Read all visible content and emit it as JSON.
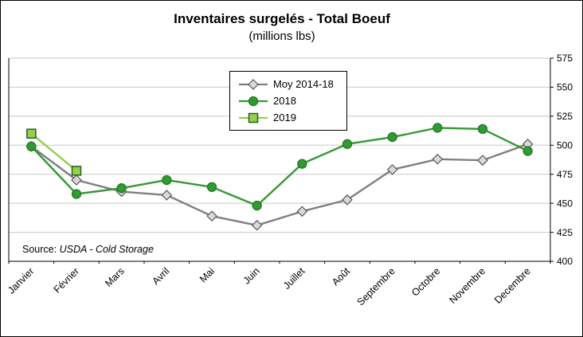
{
  "chart_data": {
    "type": "line",
    "title": "Inventaires surgelés - Total Boeuf",
    "subtitle": "(millions lbs)",
    "categories": [
      "Janvier",
      "Février",
      "Mars",
      "Avril",
      "Mai",
      "Juin",
      "Juillet",
      "Août",
      "Septembre",
      "Octobre",
      "Novembre",
      "Decembre"
    ],
    "ylim": [
      400,
      575
    ],
    "ytick_step": 25,
    "yaxis_side": "right",
    "grid": true,
    "legend_position": "top-center",
    "source_prefix": "Source:",
    "source_text": "USDA - Cold Storage",
    "colors": {
      "gridline": "#c8c8c8",
      "axis": "#000000"
    },
    "series": [
      {
        "name": "Moy 2014-18",
        "marker": "diamond",
        "color": "#808080",
        "marker_fill": "#d9d9d9",
        "marker_stroke": "#595959",
        "values": [
          499,
          470,
          460,
          457,
          439,
          431,
          443,
          453,
          479,
          488,
          487,
          501
        ]
      },
      {
        "name": "2018",
        "marker": "circle",
        "color": "#339933",
        "marker_fill": "#339933",
        "marker_stroke": "#1f7a1f",
        "values": [
          499,
          458,
          463,
          470,
          464,
          448,
          484,
          501,
          507,
          515,
          514,
          495
        ]
      },
      {
        "name": "2019",
        "marker": "square",
        "color": "#92d050",
        "marker_fill": "#92d050",
        "marker_stroke": "#375623",
        "values": [
          510,
          478,
          null,
          null,
          null,
          null,
          null,
          null,
          null,
          null,
          null,
          null
        ]
      }
    ]
  }
}
